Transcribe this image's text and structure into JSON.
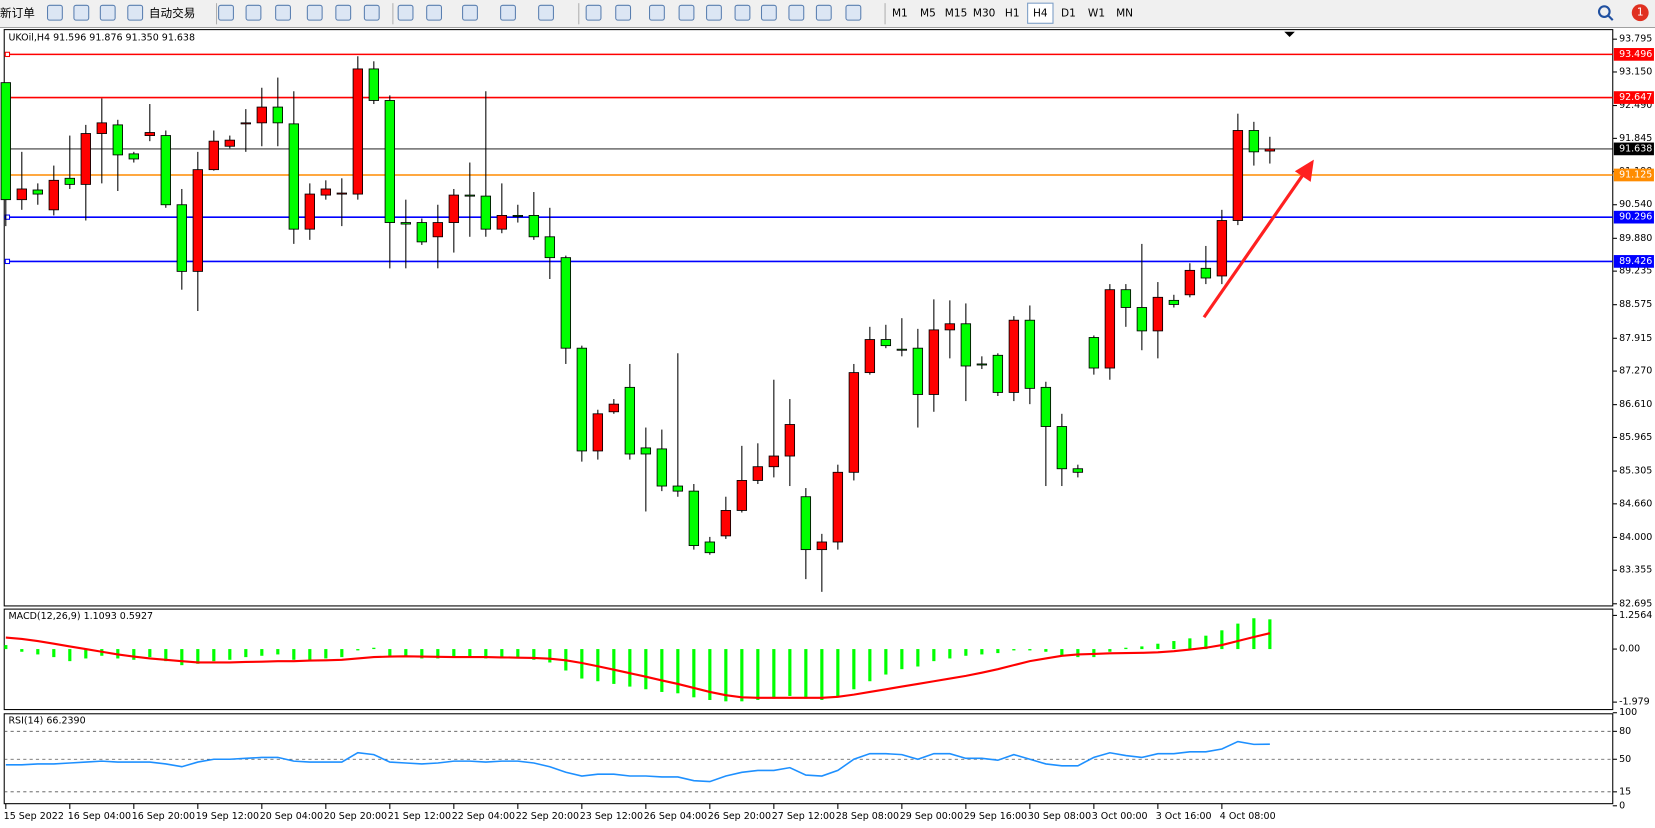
{
  "toolbar": {
    "new_order": "新订单",
    "auto_trading": "自动交易",
    "timeframes": [
      "M1",
      "M5",
      "M15",
      "M30",
      "H1",
      "H4",
      "D1",
      "W1",
      "MN"
    ],
    "notifications": 1
  },
  "chart_data": [
    {
      "type": "candlestick",
      "title": "UKOil,H4  91.596 91.876 91.350 91.638",
      "categories": [
        "15 Sep 2022",
        null,
        null,
        null,
        "16 Sep 04:00",
        null,
        null,
        null,
        "16 Sep 20:00",
        null,
        null,
        null,
        "19 Sep 12:00",
        null,
        null,
        null,
        "20 Sep 04:00",
        null,
        null,
        null,
        "20 Sep 20:00",
        null,
        null,
        null,
        "21 Sep 12:00",
        null,
        null,
        null,
        "22 Sep 04:00",
        null,
        null,
        null,
        "22 Sep 20:00",
        null,
        null,
        null,
        "23 Sep 12:00",
        null,
        null,
        null,
        "26 Sep 04:00",
        null,
        null,
        null,
        "26 Sep 20:00",
        null,
        null,
        null,
        "27 Sep 12:00",
        null,
        null,
        null,
        "28 Sep 08:00",
        null,
        null,
        null,
        "29 Sep 00:00",
        null,
        null,
        null,
        "29 Sep 16:00",
        null,
        null,
        null,
        "30 Sep 08:00",
        null,
        null,
        null,
        "3 Oct 00:00",
        null,
        null,
        null,
        "3 Oct 16:00",
        null,
        null,
        null,
        "4 Oct 08:00",
        null,
        null,
        null
      ],
      "open": [
        92.94,
        90.64,
        90.83,
        90.44,
        91.06,
        90.94,
        91.94,
        92.11,
        91.54,
        91.9,
        91.9,
        90.54,
        89.23,
        91.23,
        91.69,
        92.13,
        92.15,
        92.46,
        92.13,
        90.06,
        90.73,
        90.75,
        90.75,
        93.21,
        92.59,
        90.19,
        90.19,
        89.91,
        90.19,
        90.73,
        90.71,
        90.06,
        90.33,
        90.33,
        89.91,
        89.5,
        87.72,
        85.7,
        86.47,
        86.95,
        85.76,
        85.74,
        85.01,
        84.91,
        83.91,
        84.03,
        84.53,
        85.12,
        85.39,
        85.6,
        84.8,
        83.76,
        83.91,
        85.28,
        87.24,
        87.89,
        87.7,
        87.72,
        86.81,
        88.08,
        88.2,
        87.41,
        87.58,
        86.85,
        88.27,
        86.95,
        86.18,
        85.35,
        87.93,
        87.33,
        88.87,
        88.52,
        88.06,
        88.66,
        88.77,
        89.29,
        89.14,
        90.23,
        92.0,
        91.596
      ],
      "high": [
        92.94,
        91.58,
        90.96,
        91.31,
        91.9,
        92.11,
        92.63,
        92.21,
        91.58,
        92.52,
        92.0,
        90.85,
        91.58,
        92.0,
        91.9,
        92.42,
        92.84,
        93.04,
        92.77,
        90.96,
        91.02,
        91.06,
        93.46,
        93.36,
        92.69,
        90.64,
        90.27,
        90.54,
        90.85,
        91.37,
        92.77,
        90.96,
        90.54,
        90.79,
        90.48,
        89.54,
        87.77,
        86.51,
        86.72,
        87.41,
        86.16,
        86.12,
        87.62,
        85.05,
        84.01,
        84.8,
        85.8,
        85.85,
        87.1,
        86.72,
        84.97,
        84.07,
        85.43,
        87.41,
        88.14,
        88.18,
        88.31,
        88.1,
        88.68,
        88.66,
        88.6,
        87.56,
        87.62,
        88.35,
        88.56,
        87.06,
        86.43,
        85.43,
        87.97,
        88.98,
        88.98,
        89.77,
        89.02,
        88.77,
        89.39,
        89.73,
        90.44,
        92.33,
        92.17,
        91.876
      ],
      "low": [
        90.12,
        90.44,
        90.54,
        90.33,
        90.85,
        90.23,
        90.96,
        90.81,
        91.37,
        91.79,
        90.48,
        88.87,
        88.45,
        91.21,
        91.65,
        91.58,
        91.69,
        91.69,
        89.77,
        89.85,
        90.64,
        90.12,
        90.64,
        92.52,
        89.29,
        89.29,
        89.75,
        89.29,
        89.6,
        89.91,
        89.91,
        89.98,
        90.19,
        89.85,
        89.08,
        87.41,
        85.49,
        85.53,
        86.43,
        85.53,
        84.51,
        84.91,
        84.8,
        83.76,
        83.66,
        83.97,
        84.49,
        85.05,
        85.18,
        85.01,
        83.18,
        82.93,
        83.76,
        85.12,
        87.2,
        87.72,
        87.56,
        86.16,
        86.47,
        87.52,
        86.68,
        87.31,
        86.78,
        86.68,
        86.62,
        85.01,
        85.01,
        85.18,
        87.2,
        87.1,
        88.14,
        87.68,
        87.52,
        88.52,
        88.72,
        88.98,
        88.98,
        90.14,
        91.31,
        91.35
      ],
      "close": [
        90.64,
        90.85,
        90.75,
        91.02,
        90.94,
        91.94,
        92.15,
        91.52,
        91.44,
        91.96,
        90.54,
        89.23,
        91.23,
        91.79,
        91.81,
        92.15,
        92.46,
        92.15,
        90.06,
        90.75,
        90.85,
        90.77,
        93.21,
        92.59,
        90.19,
        90.16,
        89.81,
        90.19,
        90.73,
        90.71,
        90.06,
        90.33,
        90.31,
        89.91,
        89.5,
        87.72,
        85.7,
        86.43,
        86.62,
        85.64,
        85.64,
        85.01,
        84.91,
        83.84,
        83.7,
        84.53,
        85.12,
        85.39,
        85.6,
        86.22,
        83.76,
        83.91,
        85.28,
        87.24,
        87.89,
        87.77,
        87.68,
        86.81,
        88.08,
        88.2,
        87.37,
        87.39,
        86.85,
        88.27,
        86.93,
        86.18,
        85.35,
        85.28,
        87.33,
        88.87,
        88.52,
        88.06,
        88.72,
        88.58,
        89.25,
        89.1,
        90.23,
        92.0,
        91.58,
        91.638
      ],
      "up_color": "#ff0000",
      "down_color": "#00ff00",
      "ylim": [
        82.653,
        93.983
      ],
      "yticks": [
        93.795,
        {
          "value": 93.15,
          "label": "93.150"
        },
        {
          "value": 92.49,
          "label": "92.490"
        },
        91.845,
        {
          "value": 91.19,
          "label": "91.190"
        },
        {
          "value": 90.54,
          "label": "90.540"
        },
        {
          "value": 89.88,
          "label": "89.880"
        },
        89.235,
        88.575,
        87.915,
        {
          "value": 87.27,
          "label": "87.270"
        },
        {
          "value": 86.61,
          "label": "86.610"
        },
        85.965,
        85.305,
        {
          "value": 84.66,
          "label": "84.660"
        },
        {
          "value": 84,
          "label": "84.000"
        },
        83.355,
        82.695
      ],
      "lines": [
        {
          "value": 93.496,
          "color": "#ff0000"
        },
        {
          "value": 92.647,
          "color": "#ff0000"
        },
        {
          "value": 91.638,
          "color": "#000000"
        },
        {
          "value": 91.125,
          "color": "#ff8c00"
        },
        {
          "value": 90.296,
          "color": "#0000ff"
        },
        {
          "value": 89.426,
          "color": "#0000ff"
        }
      ]
    },
    {
      "type": "macd",
      "title": "MACD(12,26,9) 1.1093 0.5927",
      "histogram": [
        0.15,
        -0.1,
        -0.2,
        -0.3,
        -0.45,
        -0.35,
        -0.25,
        -0.35,
        -0.4,
        -0.3,
        -0.45,
        -0.6,
        -0.55,
        -0.45,
        -0.4,
        -0.3,
        -0.25,
        -0.2,
        -0.4,
        -0.4,
        -0.35,
        -0.3,
        -0.05,
        0.05,
        -0.25,
        -0.3,
        -0.35,
        -0.35,
        -0.3,
        -0.3,
        -0.35,
        -0.35,
        -0.35,
        -0.4,
        -0.5,
        -0.8,
        -1.1,
        -1.2,
        -1.3,
        -1.4,
        -1.5,
        -1.6,
        -1.65,
        -1.8,
        -1.9,
        -1.95,
        -1.95,
        -1.9,
        -1.85,
        -1.75,
        -1.85,
        -1.9,
        -1.8,
        -1.5,
        -1.2,
        -0.95,
        -0.75,
        -0.65,
        -0.45,
        -0.35,
        -0.25,
        -0.2,
        -0.15,
        -0.05,
        -0.05,
        -0.1,
        -0.25,
        -0.3,
        -0.3,
        -0.1,
        0.05,
        0.1,
        0.2,
        0.3,
        0.4,
        0.5,
        0.7,
        0.95,
        1.15,
        1.1093
      ],
      "signal": [
        0.43,
        0.38,
        0.3,
        0.2,
        0.1,
        0,
        -0.1,
        -0.2,
        -0.28,
        -0.35,
        -0.4,
        -0.45,
        -0.5,
        -0.5,
        -0.5,
        -0.48,
        -0.47,
        -0.45,
        -0.45,
        -0.43,
        -0.42,
        -0.4,
        -0.35,
        -0.3,
        -0.28,
        -0.27,
        -0.28,
        -0.29,
        -0.3,
        -0.3,
        -0.3,
        -0.31,
        -0.32,
        -0.33,
        -0.36,
        -0.42,
        -0.52,
        -0.64,
        -0.77,
        -0.9,
        -1.03,
        -1.17,
        -1.3,
        -1.45,
        -1.6,
        -1.72,
        -1.8,
        -1.82,
        -1.82,
        -1.82,
        -1.82,
        -1.82,
        -1.78,
        -1.7,
        -1.6,
        -1.5,
        -1.4,
        -1.3,
        -1.2,
        -1.1,
        -1,
        -0.88,
        -0.75,
        -0.6,
        -0.45,
        -0.35,
        -0.25,
        -0.2,
        -0.18,
        -0.16,
        -0.15,
        -0.14,
        -0.12,
        -0.08,
        -0.02,
        0.05,
        0.15,
        0.3,
        0.45,
        0.5927
      ],
      "histogram_color": "#00ff00",
      "signal_color": "#ff0000",
      "ylim": [
        -2.257,
        1.452
      ],
      "yticks": [
        1.2564,
        {
          "value": 0,
          "label": "0.00"
        },
        -1.979
      ]
    },
    {
      "type": "line",
      "title": "RSI(14) 66.2390",
      "values": [
        44,
        44,
        45,
        45,
        46,
        47,
        48,
        47,
        47,
        47,
        45,
        42,
        47,
        50,
        50,
        51,
        52,
        52,
        48,
        47,
        47,
        47,
        57,
        55,
        47,
        46,
        45,
        46,
        48,
        48,
        47,
        48,
        48,
        46,
        42,
        36,
        32,
        34,
        34,
        32,
        32,
        31,
        31,
        27,
        26,
        32,
        36,
        38,
        38,
        41,
        33,
        32,
        38,
        50,
        56,
        56,
        55,
        50,
        56,
        56,
        51,
        51,
        49,
        55,
        50,
        45,
        43,
        43,
        52,
        57,
        54,
        52,
        56,
        56,
        58,
        58,
        61,
        69,
        66,
        66.239
      ],
      "color": "#1e90ff",
      "ylim": [
        0,
        100
      ],
      "yticks": [
        100,
        80,
        50,
        15,
        0
      ],
      "levels": [
        80,
        50,
        15
      ]
    }
  ]
}
